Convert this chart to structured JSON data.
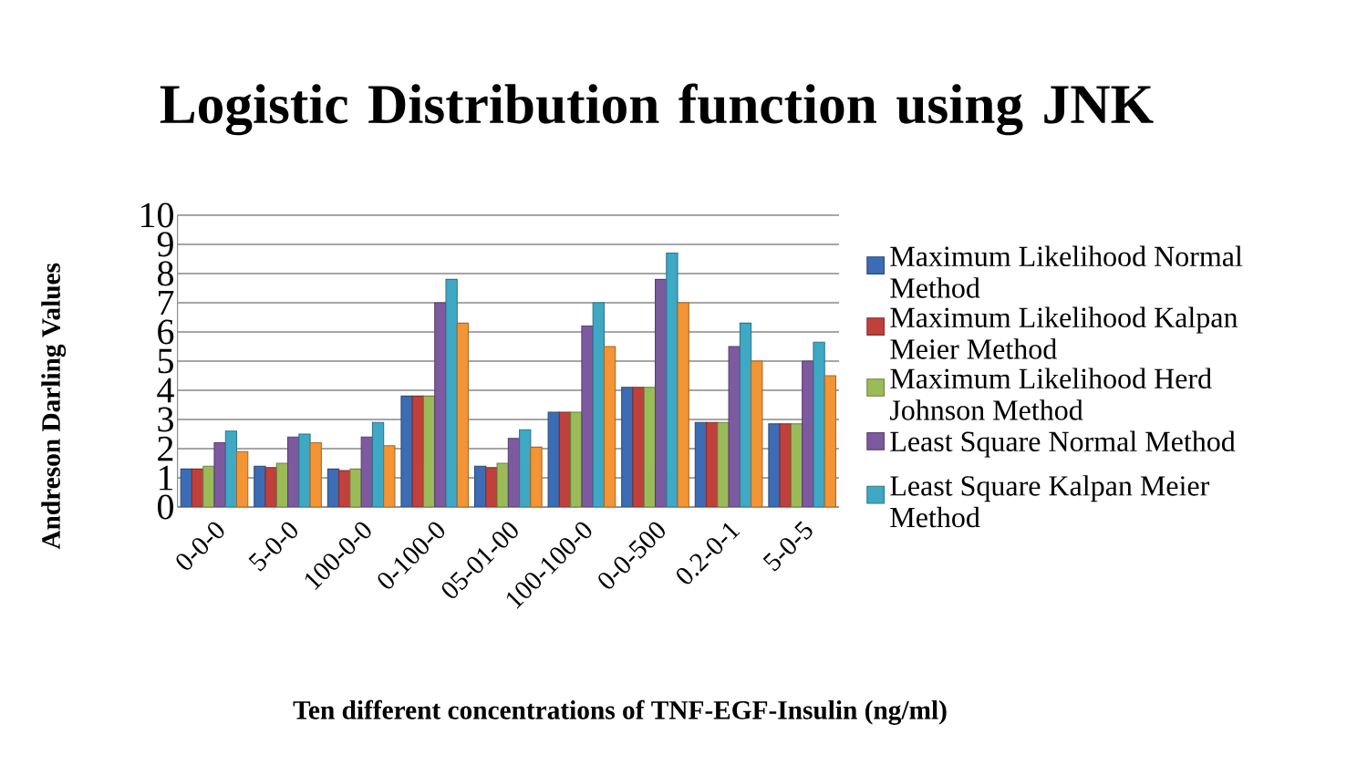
{
  "chart_data": {
    "type": "bar",
    "title": "Logistic Distribution function using JNK",
    "xlabel": "Ten different concentrations of TNF-EGF-Insulin (ng/ml)",
    "ylabel": "Andreson Darling Values",
    "categories": [
      "0-0-0",
      "5-0-0",
      "100-0-0",
      "0-100-0",
      "05-01-00",
      "100-100-0",
      "0-0-500",
      "0.2-0-1",
      "5-0-5"
    ],
    "series": [
      {
        "name": "Maximum Likelihood Normal Method",
        "color": "#3c6cb4",
        "values": [
          1.3,
          1.4,
          1.3,
          3.8,
          1.4,
          3.25,
          4.1,
          2.9,
          2.85
        ]
      },
      {
        "name": "Maximum Likelihood Kalpan Meier Method",
        "color": "#c0403c",
        "values": [
          1.3,
          1.35,
          1.25,
          3.8,
          1.35,
          3.25,
          4.1,
          2.9,
          2.85
        ]
      },
      {
        "name": "Maximum Likelihood Herd Johnson Method",
        "color": "#9bbb59",
        "values": [
          1.4,
          1.5,
          1.3,
          3.8,
          1.5,
          3.25,
          4.1,
          2.9,
          2.85
        ]
      },
      {
        "name": "Least Square Normal Method",
        "color": "#7d5aa0",
        "values": [
          2.2,
          2.4,
          2.4,
          7.0,
          2.35,
          6.2,
          7.8,
          5.5,
          5.0
        ]
      },
      {
        "name": "Least Square Kalpan Meier Method",
        "color": "#3fa8c4",
        "values": [
          2.6,
          2.5,
          2.9,
          7.8,
          2.65,
          7.0,
          8.7,
          6.3,
          5.65
        ]
      },
      {
        "color": "#f39435",
        "values": [
          1.9,
          2.2,
          2.1,
          6.3,
          2.05,
          5.5,
          7.0,
          5.0,
          4.5
        ]
      }
    ],
    "ylim": [
      0,
      10
    ],
    "yticks": [
      0,
      1,
      2,
      3,
      4,
      5,
      6,
      7,
      8,
      9,
      10
    ],
    "grid": "y",
    "legend": "right"
  }
}
